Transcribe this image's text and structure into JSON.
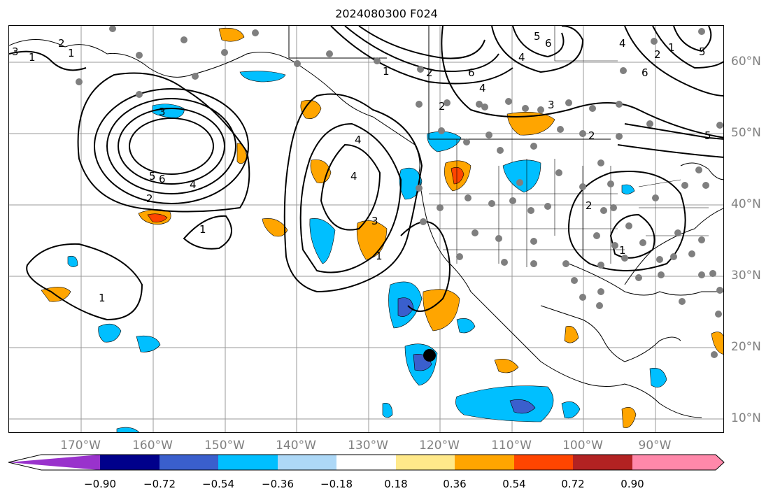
{
  "title": "2024080300 F024",
  "longitude_labels": [
    "170°W",
    "160°W",
    "150°W",
    "140°W",
    "130°W",
    "120°W",
    "110°W",
    "100°W",
    "90°W"
  ],
  "latitude_labels": [
    "60°N",
    "50°N",
    "40°N",
    "30°N",
    "20°N",
    "10°N"
  ],
  "colorbar": {
    "ticks": [
      "−0.90",
      "−0.72",
      "−0.54",
      "−0.36",
      "−0.18",
      "0.18",
      "0.36",
      "0.54",
      "0.72",
      "0.90"
    ],
    "colors": [
      "#9932CC",
      "#00008B",
      "#3A5FCD",
      "#00BFFF",
      "#ADD8F7",
      "#FFFFFF",
      "#FFE98A",
      "#FFA500",
      "#FF4500",
      "#B22222",
      "#FF88AA"
    ]
  },
  "contour_labels": [
    "3",
    "2",
    "1",
    "6",
    "5",
    "4",
    "3",
    "2",
    "1",
    "5",
    "6",
    "4",
    "2",
    "1",
    "4",
    "4",
    "3",
    "1",
    "1",
    "6",
    "4",
    "3",
    "2",
    "5",
    "2",
    "1",
    "6",
    "5",
    "4",
    "2",
    "1",
    "2",
    "1"
  ],
  "marker": {
    "color": "#000000",
    "type": "storm-center"
  }
}
